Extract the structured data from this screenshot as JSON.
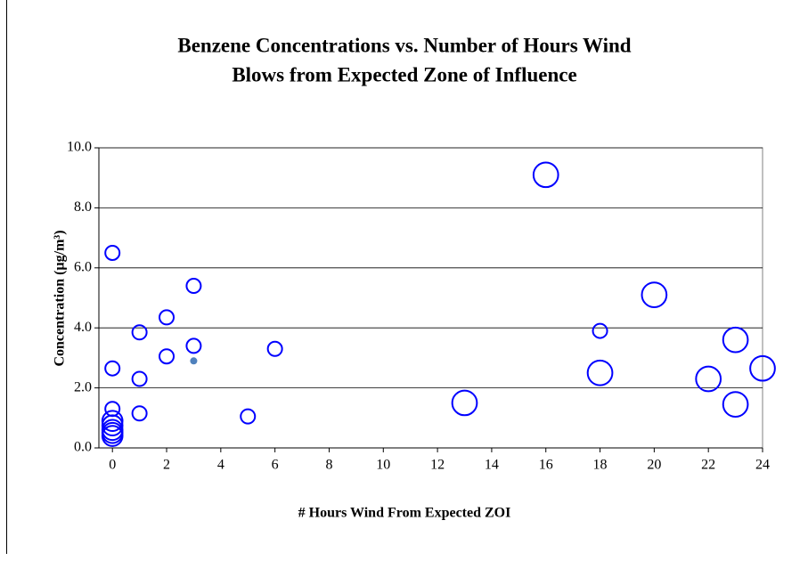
{
  "chart_data": {
    "type": "bubble",
    "title": [
      "Benzene Concentrations vs. Number of Hours Wind",
      "Blows from Expected Zone of Influence"
    ],
    "xlabel": "# Hours Wind From Expected ZOI",
    "ylabel": "Concentration (µg/m³)",
    "xlim": [
      -0.5,
      24
    ],
    "xticks": [
      0,
      2,
      4,
      6,
      8,
      10,
      12,
      14,
      16,
      18,
      20,
      22,
      24
    ],
    "ylim": [
      0,
      10
    ],
    "yticks": [
      {
        "value": 0,
        "label": "0.0"
      },
      {
        "value": 2,
        "label": "2.0"
      },
      {
        "value": 4,
        "label": "4.0"
      },
      {
        "value": 6,
        "label": "6.0"
      },
      {
        "value": 8,
        "label": "8.0"
      },
      {
        "value": 10,
        "label": "10.0"
      }
    ],
    "grid": true,
    "series": [
      {
        "color": "#0000ff",
        "filled": false,
        "x": [
          0,
          0,
          0,
          0,
          0,
          0,
          0,
          0,
          1,
          1,
          1,
          2,
          2,
          3,
          3,
          5,
          6,
          13,
          16,
          18,
          18,
          20,
          22,
          23,
          23,
          24
        ],
        "values": [
          6.5,
          2.65,
          1.3,
          0.9,
          0.75,
          0.6,
          0.5,
          0.4,
          3.85,
          2.3,
          1.15,
          4.35,
          3.05,
          5.4,
          3.4,
          1.05,
          3.3,
          1.5,
          9.1,
          3.9,
          2.5,
          5.1,
          2.3,
          3.6,
          1.45,
          2.65
        ],
        "sizes": [
          1,
          1,
          1,
          2,
          2,
          2,
          2,
          2,
          1,
          1,
          1,
          1,
          1,
          1,
          1,
          1,
          1,
          3,
          3,
          1,
          3,
          3,
          3,
          3,
          3,
          3
        ]
      },
      {
        "color": "#4f81bd",
        "filled": true,
        "x": [
          3
        ],
        "values": [
          2.9
        ],
        "sizes": [
          0.25
        ]
      }
    ]
  }
}
